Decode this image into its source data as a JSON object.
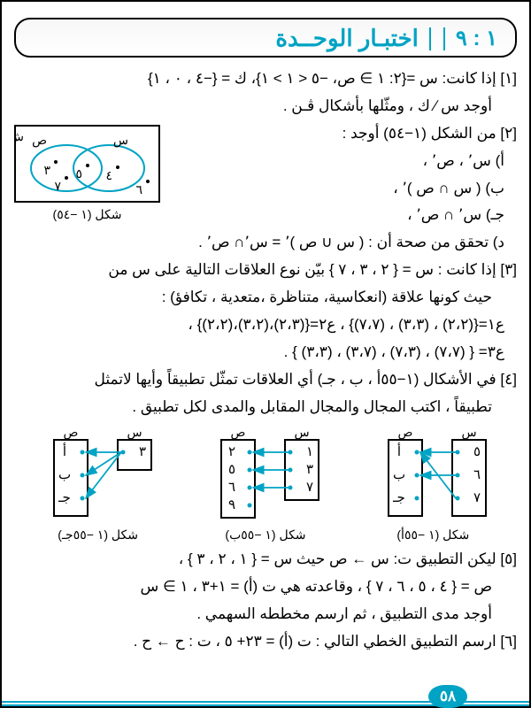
{
  "header": {
    "number": "١ : ٩",
    "title": "اختبـار الوحــدة"
  },
  "questions": {
    "q1": {
      "line1": "[١] إذا كانت: س ={٢: ١ ∋ ص، −٥ < ١ > ١}، ك = {−٤ ، ٠ ، ١}",
      "line2": "أوجد س ∕ ك ، ومثّلها بأشكال ڤـن ."
    },
    "q2": {
      "line1": "[٢] من الشكل (١−٥٤) أوجد :",
      "a": "أ) س٬ ، ص٬ ،",
      "b": "ب) ( س ∩ ص )٬ ،",
      "c": "جـ) س٬ ∩ ص٬ ،",
      "d": "د) تحقق من صحة أن : ( س ∪ ص )٬ = س٬∩ ص٬ ."
    },
    "q3": {
      "line1": "[٣] إذا كانت : س = { ٢ ، ٣ ، ٧ } بيّن نوع العلاقات التالية على س من",
      "line2": "حيث كونها علاقة (انعكاسية، متناظرة ،متعدية ، تكافؤ) :",
      "r1": "ع١={(٢،٢) ، (٣،٣) ، (٧،٧)} ، ع٢={(٢،٣)،(٣،٢)،(٢،٢)} ،",
      "r2": "ع٣= { (٧،٧) ، (٧،٣) ، (٣،٧) ، (٣،٣) } ."
    },
    "q4": {
      "line1": "[٤] في الأشكال (١−٥٥أ ، ب ، جـ) أي العلاقات تمثّل تطبيقاً وأيها لاتمثل",
      "line2": "تطبيقاً ، اكتب المجال والمجال المقابل والمدى لكل تطبيق ."
    },
    "q5": {
      "line1": "[٥] ليكن التطبيق ت: س ← ص حيث س = { ١ ، ٢ ، ٣ } ،",
      "line2": "ص = { ٤ ، ٥ ، ٦ ، ٧ } ، وقاعدته هي ت (أ) = ١+٣ ، ١ ∋ س",
      "line3": "أوجد مدى التطبيق ، ثم ارسم مخططه السهمي ."
    },
    "q6": {
      "line1": "[٦] ارسم التطبيق الخطي التالي : ت (أ) = ٢٣+ ٥ ، ت : ح ← ح ."
    }
  },
  "venn": {
    "caption": "شكل (١ −٥٤)",
    "label_sh": "ش",
    "label_s": "س",
    "label_sad": "ص",
    "n3": "٣",
    "n4": "٤",
    "n5": "٥",
    "n6": "٦",
    "n7": "٧",
    "circle_color": "#00a3c4",
    "dot_color": "#000000"
  },
  "maps": {
    "a": {
      "caption": "شكل (١ −٥٥أ)",
      "left": [
        "٥",
        "٦",
        "٧"
      ],
      "right": [
        "أ",
        "ب",
        "جـ"
      ],
      "header_l": "س",
      "header_r": "ص",
      "arrows": [
        [
          0,
          0
        ],
        [
          1,
          1
        ],
        [
          2,
          0
        ]
      ]
    },
    "b": {
      "caption": "شكل (١ −٥٥ب)",
      "left": [
        "١",
        "٣",
        "٧"
      ],
      "right": [
        "٢",
        "٥",
        "٦",
        "٩"
      ],
      "header_l": "س",
      "header_r": "ص",
      "arrows": [
        [
          0,
          0
        ],
        [
          1,
          1
        ],
        [
          2,
          2
        ]
      ]
    },
    "c": {
      "caption": "شكل (١ −٥٥جـ)",
      "left": [
        "٣"
      ],
      "right": [
        "أ",
        "ب",
        "جـ"
      ],
      "header_l": "س",
      "header_r": "ص",
      "arrows": [
        [
          0,
          0
        ],
        [
          0,
          1
        ],
        [
          0,
          2
        ]
      ]
    },
    "arrow_color": "#00a3c4",
    "box_color": "#000000"
  },
  "footer": {
    "page_number": "٥٨",
    "line_color": "#00a3c4"
  }
}
